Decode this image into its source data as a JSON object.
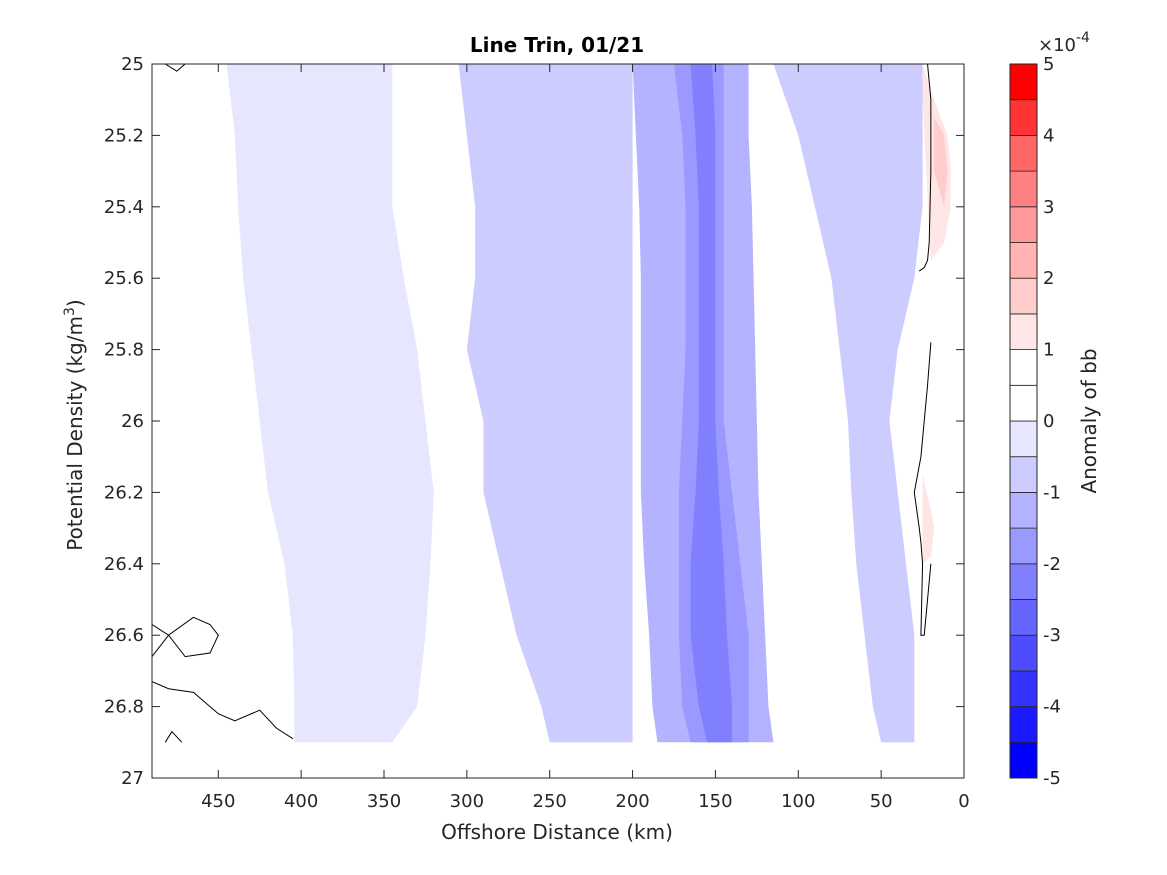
{
  "chart_data": {
    "type": "heatmap",
    "subtype": "filled-contour",
    "title": "Line Trin, 01/21",
    "xlabel": "Offshore Distance (km)",
    "ylabel": "Potential Density (kg/m",
    "ylabel_superscript": "3",
    "ylabel_close": ")",
    "x_reversed": true,
    "y_reversed": true,
    "xlim": [
      0,
      490
    ],
    "ylim": [
      25,
      27
    ],
    "x_ticks": [
      450,
      400,
      350,
      300,
      250,
      200,
      150,
      100,
      50,
      0
    ],
    "x_tick_labels": [
      "450",
      "400",
      "350",
      "300",
      "250",
      "200",
      "150",
      "100",
      "50",
      "0"
    ],
    "y_ticks": [
      25,
      25.2,
      25.4,
      25.6,
      25.8,
      26,
      26.2,
      26.4,
      26.6,
      26.8,
      27
    ],
    "y_tick_labels": [
      "25",
      "25.2",
      "25.4",
      "25.6",
      "25.8",
      "26",
      "26.2",
      "26.4",
      "26.6",
      "26.8",
      "27"
    ],
    "data_bounds": {
      "x": [
        0,
        490
      ],
      "y": [
        25,
        26.9
      ]
    },
    "colorbar": {
      "label": "Anomaly of bb",
      "exponent_prefix": "×10",
      "exponent": "-4",
      "range": [
        -5,
        5
      ],
      "ticks": [
        -5,
        -4,
        -3,
        -2,
        -1,
        0,
        1,
        2,
        3,
        4,
        5
      ],
      "tick_labels": [
        "-5",
        "-4",
        "-3",
        "-2",
        "-1",
        "0",
        "1",
        "2",
        "3",
        "4",
        "5"
      ],
      "levels": [
        {
          "from": -5,
          "to": -4.5,
          "color": "#0000ff"
        },
        {
          "from": -4.5,
          "to": -4,
          "color": "#1a1aff"
        },
        {
          "from": -4,
          "to": -3.5,
          "color": "#3333ff"
        },
        {
          "from": -3.5,
          "to": -3,
          "color": "#4d4dff"
        },
        {
          "from": -3,
          "to": -2.5,
          "color": "#6666ff"
        },
        {
          "from": -2.5,
          "to": -2,
          "color": "#8080ff"
        },
        {
          "from": -2,
          "to": -1.5,
          "color": "#9999ff"
        },
        {
          "from": -1.5,
          "to": -1,
          "color": "#b3b3ff"
        },
        {
          "from": -1,
          "to": -0.5,
          "color": "#ccccff"
        },
        {
          "from": -0.5,
          "to": 0,
          "color": "#e6e6ff"
        },
        {
          "from": 0,
          "to": 0.5,
          "color": "#ffffff"
        },
        {
          "from": 0.5,
          "to": 1,
          "color": "#ffffff"
        },
        {
          "from": 1,
          "to": 1.5,
          "color": "#ffe6e6"
        },
        {
          "from": 1.5,
          "to": 2,
          "color": "#ffcccc"
        },
        {
          "from": 2,
          "to": 2.5,
          "color": "#ffb3b3"
        },
        {
          "from": 2.5,
          "to": 3,
          "color": "#ff9999"
        },
        {
          "from": 3,
          "to": 3.5,
          "color": "#ff8080"
        },
        {
          "from": 3.5,
          "to": 4,
          "color": "#ff6666"
        },
        {
          "from": 4,
          "to": 4.5,
          "color": "#ff3333"
        },
        {
          "from": 4.5,
          "to": 5,
          "color": "#ff0000"
        }
      ]
    },
    "regions": [
      {
        "level": -0.25,
        "x": [
          435,
          422,
          410,
          405,
          400,
          405,
          398,
          395,
          380,
          368,
          362,
          365,
          360,
          350,
          345,
          340,
          345,
          348
        ],
        "y_profile": null
      },
      {
        "bands": [
          {
            "level": -0.25,
            "x_right": [
              445,
              440,
              438,
              435,
              430,
              425,
              420,
              410,
              405,
              404,
              404
            ],
            "x_left": [
              345,
              345,
              345,
              338,
              330,
              325,
              320,
              322,
              325,
              330,
              345
            ],
            "y": [
              25,
              25.2,
              25.4,
              25.6,
              25.8,
              26,
              26.2,
              26.4,
              26.6,
              26.8,
              26.9
            ]
          },
          {
            "level": -0.75,
            "x_right": [
              305,
              300,
              295,
              295,
              300,
              290,
              290,
              280,
              270,
              255,
              250
            ],
            "x_left": [
              200,
              200,
              200,
              200,
              200,
              200,
              200,
              200,
              200,
              200,
              200
            ],
            "y": [
              25,
              25.2,
              25.4,
              25.6,
              25.8,
              26,
              26.2,
              26.4,
              26.6,
              26.8,
              26.9
            ]
          },
          {
            "level": -1.25,
            "x_right": [
              200,
              198,
              196,
              195,
              195,
              195,
              195,
              193,
              190,
              188,
              185
            ],
            "x_left": [
              130,
              130,
              128,
              127,
              126,
              125,
              124,
              122,
              120,
              118,
              115
            ],
            "y": [
              25,
              25.2,
              25.4,
              25.6,
              25.8,
              26,
              26.2,
              26.4,
              26.6,
              26.8,
              26.9
            ]
          },
          {
            "level": -1.75,
            "x_right": [
              175,
              170,
              168,
              168,
              168,
              170,
              172,
              172,
              172,
              170,
              165
            ],
            "x_left": [
              145,
              145,
              145,
              145,
              145,
              145,
              140,
              135,
              130,
              130,
              130
            ],
            "y": [
              25,
              25.2,
              25.4,
              25.6,
              25.8,
              26,
              26.2,
              26.4,
              26.6,
              26.8,
              26.9
            ]
          },
          {
            "level": -2.25,
            "x_right": [
              165,
              162,
              160,
              160,
              160,
              160,
              162,
              165,
              165,
              160,
              155
            ],
            "x_left": [
              152,
              150,
              150,
              150,
              150,
              150,
              148,
              145,
              143,
              140,
              140
            ],
            "y": [
              25,
              25.2,
              25.4,
              25.6,
              25.8,
              26,
              26.2,
              26.4,
              26.6,
              26.8,
              26.9
            ]
          }
        ]
      }
    ],
    "contour_zero": [
      {
        "x": [
          482,
          475,
          470
        ],
        "y": [
          25,
          25.02,
          25.0
        ]
      },
      {
        "x": [
          490,
          480,
          465,
          455,
          450,
          455,
          470,
          480,
          490
        ],
        "y": [
          26.57,
          26.6,
          26.55,
          26.57,
          26.6,
          26.65,
          26.66,
          26.6,
          26.66
        ]
      },
      {
        "x": [
          490,
          480,
          465,
          450,
          440,
          425,
          415,
          405
        ],
        "y": [
          26.73,
          26.75,
          26.76,
          26.82,
          26.84,
          26.81,
          26.86,
          26.89
        ]
      },
      {
        "x": [
          482,
          478,
          472
        ],
        "y": [
          26.9,
          26.87,
          26.9
        ]
      },
      {
        "x": [
          22,
          20,
          20,
          21,
          22,
          24,
          27
        ],
        "y": [
          25,
          25.1,
          25.3,
          25.5,
          25.55,
          25.57,
          25.58
        ]
      },
      {
        "x": [
          20,
          22,
          26,
          30,
          27,
          26,
          25,
          26,
          24,
          20
        ],
        "y": [
          25.78,
          25.9,
          26.1,
          26.2,
          26.3,
          26.34,
          26.4,
          26.6,
          26.6,
          26.4
        ]
      }
    ],
    "positive_patches": [
      {
        "level": 1.25,
        "x": [
          25,
          18,
          10,
          8,
          8,
          12,
          20,
          25
        ],
        "y": [
          25,
          25.1,
          25.2,
          25.3,
          25.4,
          25.5,
          25.55,
          25.1
        ]
      },
      {
        "level": 1.75,
        "x": [
          18,
          12,
          10,
          12,
          18
        ],
        "y": [
          25.15,
          25.2,
          25.3,
          25.4,
          25.3
        ]
      },
      {
        "level": 1.25,
        "x": [
          25,
          20,
          18,
          20,
          25
        ],
        "y": [
          26.15,
          26.25,
          26.3,
          26.38,
          26.4
        ]
      }
    ]
  }
}
